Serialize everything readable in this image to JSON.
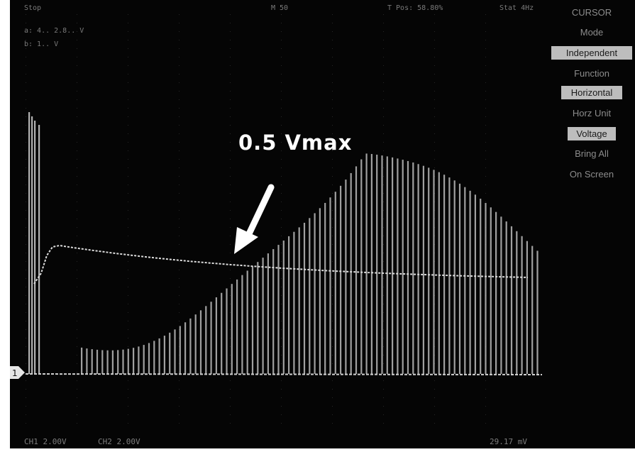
{
  "status_bar": {
    "left_lines": [
      "Stop",
      "a: 4.. 2.8.. V",
      "b: 1.. V"
    ],
    "center": "M 50",
    "trigger_pos": "T Pos: 58.80%",
    "right": "Stat 4Hz"
  },
  "side_menu": {
    "title": "CURSOR",
    "items": [
      {
        "label": "Mode",
        "selected": false
      },
      {
        "label": "Independent",
        "selected": true
      },
      {
        "label": "Function",
        "selected": false
      },
      {
        "label": "Horizontal",
        "selected": true
      },
      {
        "label": "Horz Unit",
        "selected": false
      },
      {
        "label": "Voltage",
        "selected": true
      },
      {
        "label": "Bring All",
        "selected": false
      },
      {
        "label": "On Screen",
        "selected": false
      }
    ]
  },
  "annotation": {
    "label": "0.5 Vmax",
    "color": "#ffffff"
  },
  "channel_marker": "1",
  "bottom_bar": {
    "ch1": "CH1  2.00V",
    "ch2": "CH2  2.00V",
    "readout": "29.17 mV"
  },
  "colors": {
    "screen": "#050505",
    "trace": "#dcdcdc",
    "menu_selected": "#bdbdbd"
  }
}
